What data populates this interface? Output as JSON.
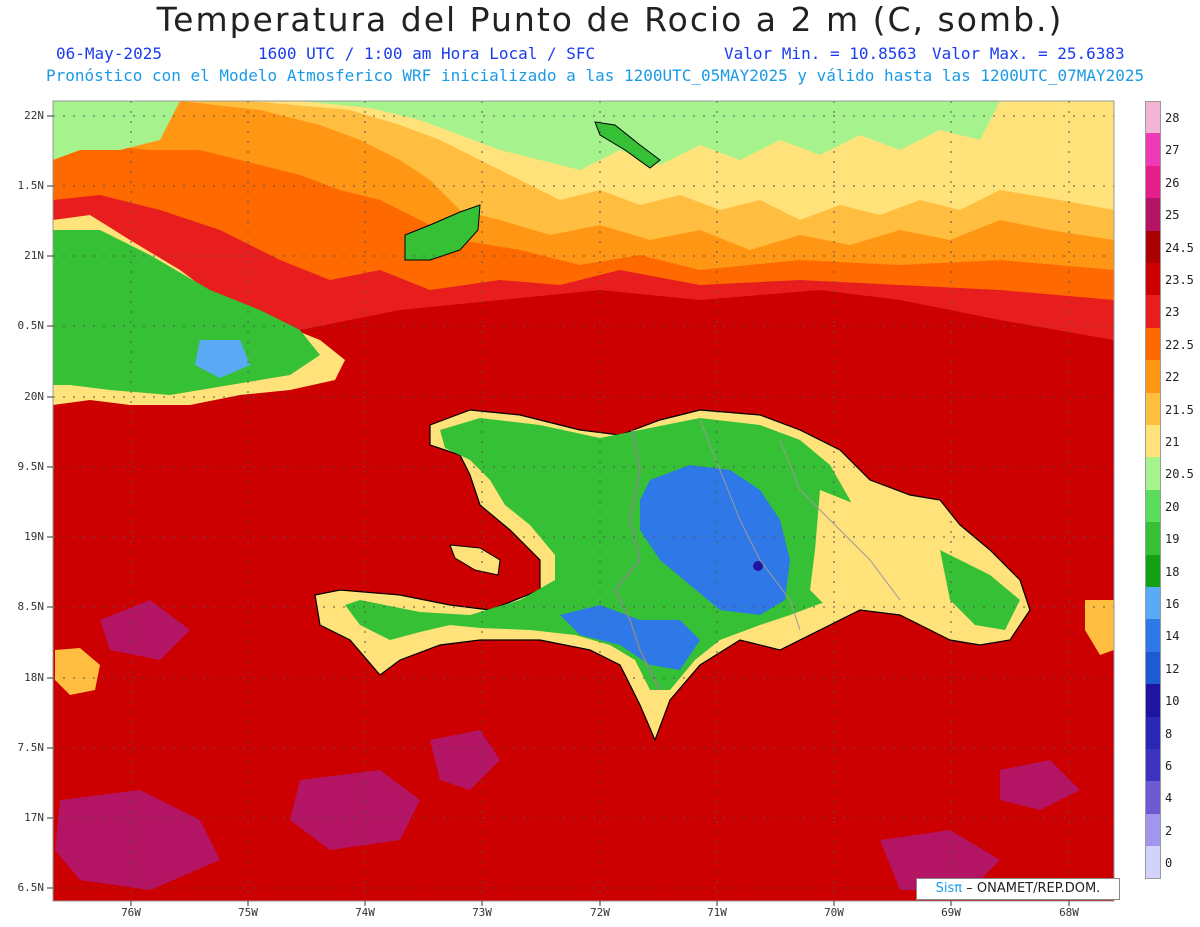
{
  "title": "Temperatura del Punto de Rocio a 2 m (C, somb.)",
  "date": "06-May-2025",
  "time_info": "1600 UTC / 1:00 am Hora Local / SFC",
  "min_label": "Valor Min. = 10.8563",
  "max_label": "Valor Max. = 25.6383",
  "forecast_info": "Pronóstico con el Modelo Atmosferico WRF inicializado a las 1200UTC_05MAY2025 y válido hasta las  1200UTC_07MAY2025",
  "lat_labels": [
    "22N",
    "1.5N",
    "21N",
    "0.5N",
    "20N",
    "9.5N",
    "19N",
    "8.5N",
    "18N",
    "7.5N",
    "17N",
    "6.5N"
  ],
  "lon_labels": [
    "76W",
    "75W",
    "74W",
    "73W",
    "72W",
    "71W",
    "70W",
    "69W",
    "68W"
  ],
  "colorbar": [
    {
      "label": "28",
      "color": "#f4b4d6"
    },
    {
      "label": "27",
      "color": "#ee3ab4"
    },
    {
      "label": "26",
      "color": "#e61e8c"
    },
    {
      "label": "25",
      "color": "#b41464"
    },
    {
      "label": "24.5",
      "color": "#aa0000"
    },
    {
      "label": "23.5",
      "color": "#cc0000"
    },
    {
      "label": "23",
      "color": "#e81e1e"
    },
    {
      "label": "22.5",
      "color": "#ff6a00"
    },
    {
      "label": "22",
      "color": "#ff9614"
    },
    {
      "label": "21.5",
      "color": "#ffbe40"
    },
    {
      "label": "21",
      "color": "#ffe27a"
    },
    {
      "label": "20.5",
      "color": "#a6f28c"
    },
    {
      "label": "20",
      "color": "#5cdc5c"
    },
    {
      "label": "19",
      "color": "#36c036"
    },
    {
      "label": "18",
      "color": "#14a014"
    },
    {
      "label": "16",
      "color": "#5aaaf5"
    },
    {
      "label": "14",
      "color": "#2e78e8"
    },
    {
      "label": "12",
      "color": "#1e5ad2"
    },
    {
      "label": "10",
      "color": "#1e14a0"
    },
    {
      "label": "8",
      "color": "#2828b4"
    },
    {
      "label": "6",
      "color": "#3c32be"
    },
    {
      "label": "4",
      "color": "#6e5ad2"
    },
    {
      "label": "2",
      "color": "#a096f0"
    },
    {
      "label": "0",
      "color": "#d2d2fa"
    }
  ],
  "credit_sis": "Sisπ",
  "credit_text": "– ONAMET/REP.DOM."
}
